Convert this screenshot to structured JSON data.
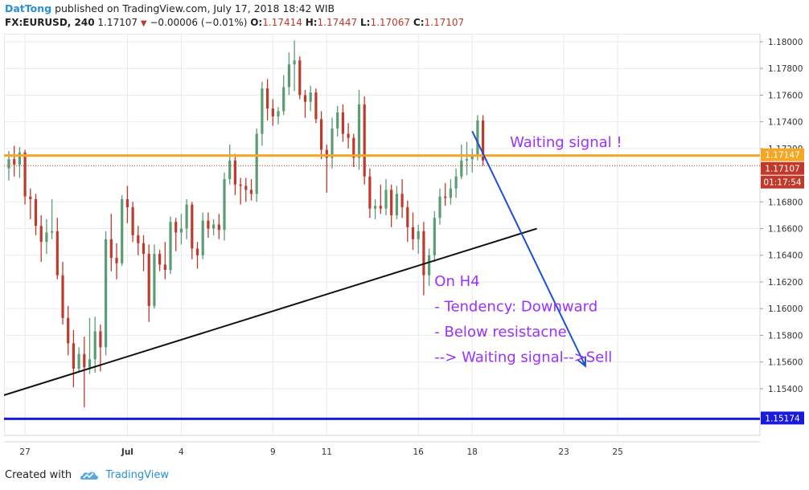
{
  "header": {
    "author": "DatTong",
    "published": "published on TradingView.com, July 17, 2018 18:42 WIB",
    "symbol": "FX:EURUSD, 240",
    "last": "1.17107",
    "change": "−0.00006 (−0.01%)",
    "o_label": "O:",
    "o": "1.17414",
    "h_label": "H:",
    "h": "1.17447",
    "l_label": "L:",
    "l": "1.17067",
    "c_label": "C:",
    "c": "1.17107"
  },
  "footer": {
    "created_with": "Created with",
    "brand": "TradingView"
  },
  "colors": {
    "up": "#5b9c74",
    "down": "#c0392b",
    "resistance": "#f5a623",
    "trendline": "#111111",
    "support": "#1a1adc",
    "annotation": "#9b30ff",
    "arrow": "#1a4fd8",
    "grid": "#e8eaf0"
  },
  "chart_data": {
    "type": "candlestick",
    "y_ticks": [
      "1.18000",
      "1.17800",
      "1.17600",
      "1.17400",
      "1.17200",
      "1.16800",
      "1.16600",
      "1.16400",
      "1.16200",
      "1.16000",
      "1.15800",
      "1.15600",
      "1.15400"
    ],
    "ylim": [
      1.1505,
      1.1806
    ],
    "x_ticks": [
      {
        "label": "27",
        "index": 3
      },
      {
        "label": "Jul",
        "index": 22
      },
      {
        "label": "4",
        "index": 32
      },
      {
        "label": "9",
        "index": 49
      },
      {
        "label": "11",
        "index": 59
      },
      {
        "label": "16",
        "index": 76
      },
      {
        "label": "18",
        "index": 86
      },
      {
        "label": "23",
        "index": 103
      },
      {
        "label": "25",
        "index": 113
      }
    ],
    "x_count": 125,
    "price_tags": [
      {
        "label": "1.17147",
        "value": 1.17147,
        "color": "#f5a623"
      },
      {
        "label": "1.17107",
        "value": 1.17107,
        "color": "#c0392b"
      },
      {
        "label": "01:17:54",
        "value": 1.1691,
        "color": "#c0392b"
      },
      {
        "label": "1.15174",
        "value": 1.15174,
        "color": "#1a1adc"
      }
    ],
    "resistance_level": 1.17147,
    "support_level": 1.15174,
    "last_price": 1.17107,
    "trendline": {
      "from": [
        -1,
        1.1535
      ],
      "to": [
        98,
        1.166
      ]
    },
    "projection_arrow": {
      "from": [
        86,
        1.1733
      ],
      "to": [
        107,
        1.1557
      ]
    },
    "candles": [
      {
        "o": 1.1705,
        "h": 1.1718,
        "l": 1.1696,
        "c": 1.1712
      },
      {
        "o": 1.1712,
        "h": 1.1722,
        "l": 1.1699,
        "c": 1.1708
      },
      {
        "o": 1.1708,
        "h": 1.1721,
        "l": 1.1698,
        "c": 1.1717
      },
      {
        "o": 1.1717,
        "h": 1.1719,
        "l": 1.1678,
        "c": 1.1684
      },
      {
        "o": 1.1684,
        "h": 1.169,
        "l": 1.1667,
        "c": 1.1682
      },
      {
        "o": 1.1682,
        "h": 1.1686,
        "l": 1.1655,
        "c": 1.1662
      },
      {
        "o": 1.1662,
        "h": 1.167,
        "l": 1.1635,
        "c": 1.165
      },
      {
        "o": 1.165,
        "h": 1.1667,
        "l": 1.1641,
        "c": 1.1657
      },
      {
        "o": 1.1657,
        "h": 1.1682,
        "l": 1.1652,
        "c": 1.1658
      },
      {
        "o": 1.1658,
        "h": 1.1668,
        "l": 1.1622,
        "c": 1.1625
      },
      {
        "o": 1.1625,
        "h": 1.1635,
        "l": 1.1588,
        "c": 1.1593
      },
      {
        "o": 1.1593,
        "h": 1.1602,
        "l": 1.1565,
        "c": 1.1574
      },
      {
        "o": 1.1574,
        "h": 1.1584,
        "l": 1.1541,
        "c": 1.1555
      },
      {
        "o": 1.1555,
        "h": 1.1571,
        "l": 1.1553,
        "c": 1.1566
      },
      {
        "o": 1.1566,
        "h": 1.1579,
        "l": 1.1526,
        "c": 1.1556
      },
      {
        "o": 1.1556,
        "h": 1.1593,
        "l": 1.1551,
        "c": 1.1562
      },
      {
        "o": 1.1562,
        "h": 1.1594,
        "l": 1.1552,
        "c": 1.1583
      },
      {
        "o": 1.1583,
        "h": 1.1588,
        "l": 1.1553,
        "c": 1.1571
      },
      {
        "o": 1.1571,
        "h": 1.1658,
        "l": 1.1565,
        "c": 1.1652
      },
      {
        "o": 1.1652,
        "h": 1.1671,
        "l": 1.1628,
        "c": 1.1638
      },
      {
        "o": 1.1638,
        "h": 1.1649,
        "l": 1.1622,
        "c": 1.1634
      },
      {
        "o": 1.1634,
        "h": 1.1685,
        "l": 1.1632,
        "c": 1.1682
      },
      {
        "o": 1.1682,
        "h": 1.1692,
        "l": 1.1664,
        "c": 1.1676
      },
      {
        "o": 1.1676,
        "h": 1.168,
        "l": 1.165,
        "c": 1.1655
      },
      {
        "o": 1.1655,
        "h": 1.1662,
        "l": 1.164,
        "c": 1.1649
      },
      {
        "o": 1.1649,
        "h": 1.1655,
        "l": 1.1628,
        "c": 1.1641
      },
      {
        "o": 1.1641,
        "h": 1.1648,
        "l": 1.159,
        "c": 1.1602
      },
      {
        "o": 1.1602,
        "h": 1.1648,
        "l": 1.16,
        "c": 1.1641
      },
      {
        "o": 1.1641,
        "h": 1.1644,
        "l": 1.1628,
        "c": 1.1633
      },
      {
        "o": 1.1633,
        "h": 1.165,
        "l": 1.1622,
        "c": 1.1629
      },
      {
        "o": 1.1629,
        "h": 1.1669,
        "l": 1.1626,
        "c": 1.1665
      },
      {
        "o": 1.1665,
        "h": 1.1668,
        "l": 1.1643,
        "c": 1.1657
      },
      {
        "o": 1.1657,
        "h": 1.1671,
        "l": 1.1648,
        "c": 1.166
      },
      {
        "o": 1.166,
        "h": 1.1682,
        "l": 1.1652,
        "c": 1.1678
      },
      {
        "o": 1.1678,
        "h": 1.168,
        "l": 1.1637,
        "c": 1.1645
      },
      {
        "o": 1.1645,
        "h": 1.165,
        "l": 1.163,
        "c": 1.164
      },
      {
        "o": 1.164,
        "h": 1.1672,
        "l": 1.1637,
        "c": 1.1666
      },
      {
        "o": 1.1666,
        "h": 1.1672,
        "l": 1.1653,
        "c": 1.166
      },
      {
        "o": 1.166,
        "h": 1.1667,
        "l": 1.1655,
        "c": 1.1663
      },
      {
        "o": 1.1663,
        "h": 1.1671,
        "l": 1.1652,
        "c": 1.1659
      },
      {
        "o": 1.1659,
        "h": 1.1702,
        "l": 1.1651,
        "c": 1.1697
      },
      {
        "o": 1.1697,
        "h": 1.1723,
        "l": 1.1693,
        "c": 1.1711
      },
      {
        "o": 1.1711,
        "h": 1.1716,
        "l": 1.1685,
        "c": 1.1693
      },
      {
        "o": 1.1693,
        "h": 1.1698,
        "l": 1.1678,
        "c": 1.1692
      },
      {
        "o": 1.1692,
        "h": 1.1698,
        "l": 1.168,
        "c": 1.1689
      },
      {
        "o": 1.1689,
        "h": 1.1697,
        "l": 1.1681,
        "c": 1.1686
      },
      {
        "o": 1.1686,
        "h": 1.1735,
        "l": 1.168,
        "c": 1.1731
      },
      {
        "o": 1.1731,
        "h": 1.177,
        "l": 1.1722,
        "c": 1.1765
      },
      {
        "o": 1.1765,
        "h": 1.1772,
        "l": 1.1741,
        "c": 1.175
      },
      {
        "o": 1.175,
        "h": 1.1757,
        "l": 1.1737,
        "c": 1.1744
      },
      {
        "o": 1.1744,
        "h": 1.1751,
        "l": 1.1738,
        "c": 1.1748
      },
      {
        "o": 1.1748,
        "h": 1.1775,
        "l": 1.1745,
        "c": 1.1766
      },
      {
        "o": 1.1766,
        "h": 1.1792,
        "l": 1.176,
        "c": 1.1783
      },
      {
        "o": 1.1783,
        "h": 1.1801,
        "l": 1.1763,
        "c": 1.1786
      },
      {
        "o": 1.1786,
        "h": 1.1789,
        "l": 1.1757,
        "c": 1.176
      },
      {
        "o": 1.176,
        "h": 1.1764,
        "l": 1.1743,
        "c": 1.1755
      },
      {
        "o": 1.1755,
        "h": 1.1767,
        "l": 1.1748,
        "c": 1.1762
      },
      {
        "o": 1.1762,
        "h": 1.1765,
        "l": 1.1739,
        "c": 1.1742
      },
      {
        "o": 1.1742,
        "h": 1.1748,
        "l": 1.1712,
        "c": 1.1719
      },
      {
        "o": 1.1719,
        "h": 1.1723,
        "l": 1.1687,
        "c": 1.1713
      },
      {
        "o": 1.1713,
        "h": 1.1743,
        "l": 1.1705,
        "c": 1.1735
      },
      {
        "o": 1.1735,
        "h": 1.1752,
        "l": 1.1729,
        "c": 1.1747
      },
      {
        "o": 1.1747,
        "h": 1.1753,
        "l": 1.1725,
        "c": 1.1731
      },
      {
        "o": 1.1731,
        "h": 1.1739,
        "l": 1.172,
        "c": 1.1728
      },
      {
        "o": 1.1728,
        "h": 1.1731,
        "l": 1.1706,
        "c": 1.1713
      },
      {
        "o": 1.1713,
        "h": 1.1764,
        "l": 1.1704,
        "c": 1.1753
      },
      {
        "o": 1.1753,
        "h": 1.1759,
        "l": 1.1693,
        "c": 1.1699
      },
      {
        "o": 1.1699,
        "h": 1.1705,
        "l": 1.1668,
        "c": 1.1675
      },
      {
        "o": 1.1675,
        "h": 1.1682,
        "l": 1.1667,
        "c": 1.1677
      },
      {
        "o": 1.1677,
        "h": 1.1693,
        "l": 1.1671,
        "c": 1.1675
      },
      {
        "o": 1.1675,
        "h": 1.1697,
        "l": 1.167,
        "c": 1.1689
      },
      {
        "o": 1.1689,
        "h": 1.1693,
        "l": 1.1661,
        "c": 1.167
      },
      {
        "o": 1.167,
        "h": 1.1692,
        "l": 1.1667,
        "c": 1.1686
      },
      {
        "o": 1.1686,
        "h": 1.1697,
        "l": 1.1668,
        "c": 1.1676
      },
      {
        "o": 1.1676,
        "h": 1.1681,
        "l": 1.165,
        "c": 1.1661
      },
      {
        "o": 1.1661,
        "h": 1.1672,
        "l": 1.1644,
        "c": 1.1652
      },
      {
        "o": 1.1652,
        "h": 1.1663,
        "l": 1.1641,
        "c": 1.1658
      },
      {
        "o": 1.1658,
        "h": 1.1665,
        "l": 1.161,
        "c": 1.1625
      },
      {
        "o": 1.1625,
        "h": 1.1645,
        "l": 1.1617,
        "c": 1.164
      },
      {
        "o": 1.164,
        "h": 1.1673,
        "l": 1.1635,
        "c": 1.1668
      },
      {
        "o": 1.1668,
        "h": 1.169,
        "l": 1.1663,
        "c": 1.1684
      },
      {
        "o": 1.1684,
        "h": 1.1694,
        "l": 1.1677,
        "c": 1.1683
      },
      {
        "o": 1.1683,
        "h": 1.1697,
        "l": 1.1678,
        "c": 1.169
      },
      {
        "o": 1.169,
        "h": 1.1705,
        "l": 1.1683,
        "c": 1.1699
      },
      {
        "o": 1.1699,
        "h": 1.1723,
        "l": 1.1697,
        "c": 1.1711
      },
      {
        "o": 1.1711,
        "h": 1.1725,
        "l": 1.17,
        "c": 1.1712
      },
      {
        "o": 1.1712,
        "h": 1.172,
        "l": 1.1702,
        "c": 1.1714
      },
      {
        "o": 1.1714,
        "h": 1.1745,
        "l": 1.1711,
        "c": 1.1741
      },
      {
        "o": 1.1741,
        "h": 1.1745,
        "l": 1.1707,
        "c": 1.1711
      }
    ],
    "annotations": [
      {
        "text": "Waiting signal !",
        "x": 93,
        "y": 1.1721
      },
      {
        "text": "On H4",
        "x": 79,
        "y": 1.1617
      },
      {
        "text": "- Tendency: Downward",
        "x": 79,
        "y": 1.1598
      },
      {
        "text": "- Below resistacne",
        "x": 79,
        "y": 1.1579
      },
      {
        "text": "--> Waiting signal-->Sell",
        "x": 79,
        "y": 1.156
      }
    ]
  }
}
